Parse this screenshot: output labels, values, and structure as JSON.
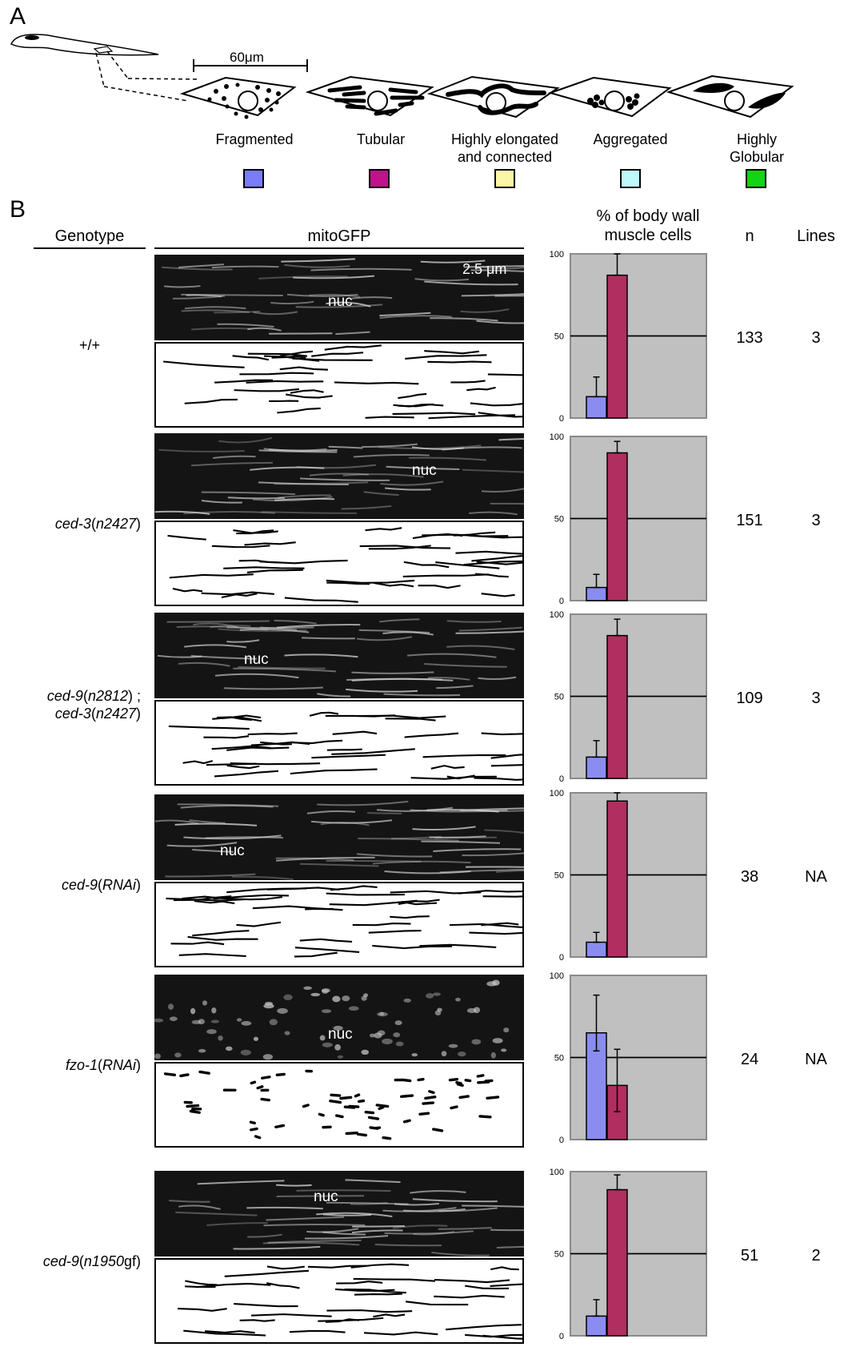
{
  "panel_a": {
    "letter": "A",
    "scale_label": "60μm",
    "categories": [
      {
        "label": "Fragmented",
        "color": "#7a7cf8"
      },
      {
        "label": "Tubular",
        "color": "#c0128a"
      },
      {
        "label": "Highly elongated\nand connected",
        "color": "#fbf6a8"
      },
      {
        "label": "Aggregated",
        "color": "#bff8fb"
      },
      {
        "label": "Highly\nGlobular",
        "color": "#12d412"
      }
    ]
  },
  "panel_b": {
    "letter": "B",
    "headers": {
      "genotype": "Genotype",
      "mitogfp": "mitoGFP",
      "percent": "% of body wall\nmuscle cells",
      "n": "n",
      "lines": "Lines"
    },
    "scale_label": "2.5 μm",
    "nuc_label": "nuc",
    "rows": [
      {
        "genotype_parts": [
          {
            "t": "+/+",
            "i": false
          }
        ],
        "n": "133",
        "lines": "3"
      },
      {
        "genotype_parts": [
          {
            "t": "ced-3",
            "i": true
          },
          {
            "t": "(",
            "i": false
          },
          {
            "t": "n2427",
            "i": true
          },
          {
            "t": ")",
            "i": false
          }
        ],
        "n": "151",
        "lines": "3"
      },
      {
        "genotype_parts": [
          {
            "t": "ced-9",
            "i": true
          },
          {
            "t": "(",
            "i": false
          },
          {
            "t": "n2812",
            "i": true
          },
          {
            "t": ") ;",
            "i": false
          }
        ],
        "genotype_line2_parts": [
          {
            "t": "ced-3",
            "i": true
          },
          {
            "t": "(",
            "i": false
          },
          {
            "t": "n2427",
            "i": true
          },
          {
            "t": ")",
            "i": false
          }
        ],
        "n": "109",
        "lines": "3"
      },
      {
        "genotype_parts": [
          {
            "t": "ced-9",
            "i": true
          },
          {
            "t": "(",
            "i": false
          },
          {
            "t": "RNAi",
            "i": true
          },
          {
            "t": ")",
            "i": false
          }
        ],
        "n": "38",
        "lines": "NA"
      },
      {
        "genotype_parts": [
          {
            "t": "fzo-1",
            "i": true
          },
          {
            "t": "(",
            "i": false
          },
          {
            "t": "RNAi",
            "i": true
          },
          {
            "t": ")",
            "i": false
          }
        ],
        "n": "24",
        "lines": "NA"
      },
      {
        "genotype_parts": [
          {
            "t": "ced-9",
            "i": true
          },
          {
            "t": "(",
            "i": false
          },
          {
            "t": "n1950",
            "i": true
          },
          {
            "t": "gf)",
            "i": false
          }
        ],
        "n": "51",
        "lines": "2"
      }
    ]
  },
  "chart_data": [
    {
      "type": "bar",
      "categories": [
        "Fragmented",
        "Tubular"
      ],
      "values": [
        13,
        87
      ],
      "errors": [
        [
          13,
          25
        ],
        [
          87,
          100
        ]
      ],
      "ylim": [
        0,
        100
      ],
      "yticks": [
        "0",
        "50",
        "100"
      ],
      "colors": [
        "#8b8cf2",
        "#b02e60"
      ]
    },
    {
      "type": "bar",
      "categories": [
        "Fragmented",
        "Tubular"
      ],
      "values": [
        8,
        90
      ],
      "errors": [
        [
          8,
          16
        ],
        [
          90,
          97
        ]
      ],
      "ylim": [
        0,
        100
      ],
      "yticks": [
        "0",
        "50",
        "100"
      ],
      "colors": [
        "#8b8cf2",
        "#b02e60"
      ]
    },
    {
      "type": "bar",
      "categories": [
        "Fragmented",
        "Tubular"
      ],
      "values": [
        13,
        87
      ],
      "errors": [
        [
          13,
          23
        ],
        [
          87,
          97
        ]
      ],
      "ylim": [
        0,
        100
      ],
      "yticks": [
        "0",
        "50",
        "100"
      ],
      "colors": [
        "#8b8cf2",
        "#b02e60"
      ]
    },
    {
      "type": "bar",
      "categories": [
        "Fragmented",
        "Tubular"
      ],
      "values": [
        9,
        95
      ],
      "errors": [
        [
          9,
          15
        ],
        [
          95,
          100
        ]
      ],
      "ylim": [
        0,
        100
      ],
      "yticks": [
        "0",
        "50",
        "100"
      ],
      "colors": [
        "#8b8cf2",
        "#b02e60"
      ]
    },
    {
      "type": "bar",
      "categories": [
        "Fragmented",
        "Tubular"
      ],
      "values": [
        65,
        33
      ],
      "errors": [
        [
          54,
          88
        ],
        [
          17,
          55
        ]
      ],
      "ylim": [
        0,
        100
      ],
      "yticks": [
        "0",
        "50",
        "100"
      ],
      "colors": [
        "#8b8cf2",
        "#b02e60"
      ]
    },
    {
      "type": "bar",
      "categories": [
        "Fragmented",
        "Tubular"
      ],
      "values": [
        12,
        89
      ],
      "errors": [
        [
          12,
          22
        ],
        [
          89,
          98
        ]
      ],
      "ylim": [
        0,
        100
      ],
      "yticks": [
        "0",
        "50",
        "100"
      ],
      "colors": [
        "#8b8cf2",
        "#b02e60"
      ]
    }
  ]
}
